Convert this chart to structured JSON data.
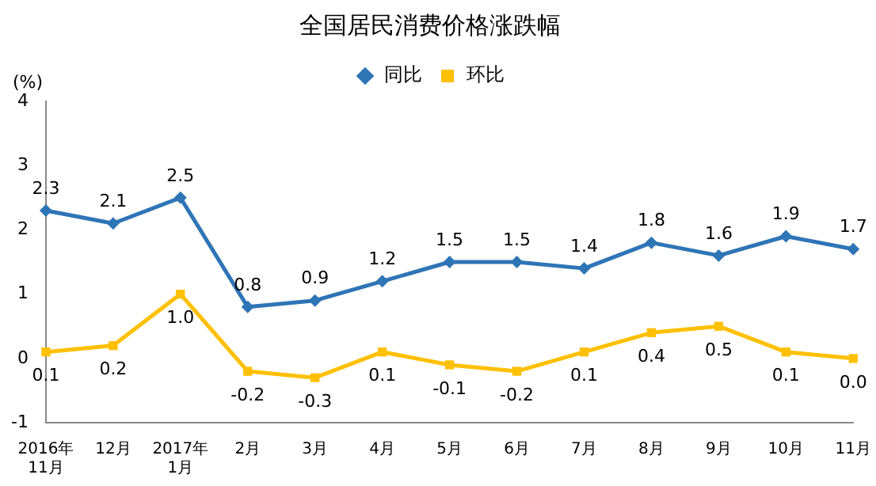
{
  "chart_data": {
    "type": "line",
    "title": "全国居民消费价格涨跌幅",
    "ylabel": "(%)",
    "categories": [
      "2016年\n11月",
      "12月",
      "2017年\n1月",
      "2月",
      "3月",
      "4月",
      "5月",
      "6月",
      "7月",
      "8月",
      "9月",
      "10月",
      "11月"
    ],
    "series": [
      {
        "name": "同比",
        "color": "#2e75b6",
        "marker": "diamond",
        "values": [
          2.3,
          2.1,
          2.5,
          0.8,
          0.9,
          1.2,
          1.5,
          1.5,
          1.4,
          1.8,
          1.6,
          1.9,
          1.7
        ],
        "value_labels": [
          "2.3",
          "2.1",
          "2.5",
          "0.8",
          "0.9",
          "1.2",
          "1.5",
          "1.5",
          "1.4",
          "1.8",
          "1.6",
          "1.9",
          "1.7"
        ]
      },
      {
        "name": "环比",
        "color": "#ffc000",
        "marker": "square",
        "values": [
          0.1,
          0.2,
          1.0,
          -0.2,
          -0.3,
          0.1,
          -0.1,
          -0.2,
          0.1,
          0.4,
          0.5,
          0.1,
          0.0
        ],
        "value_labels": [
          "0.1",
          "0.2",
          "1.0",
          "-0.2",
          "-0.3",
          "0.1",
          "-0.1",
          "-0.2",
          "0.1",
          "0.4",
          "0.5",
          "0.1",
          "0.0"
        ]
      }
    ],
    "ylim": [
      -1,
      4
    ],
    "yticks": [
      -1,
      0,
      1,
      2,
      3,
      4
    ],
    "grid": false,
    "legend": "top"
  }
}
